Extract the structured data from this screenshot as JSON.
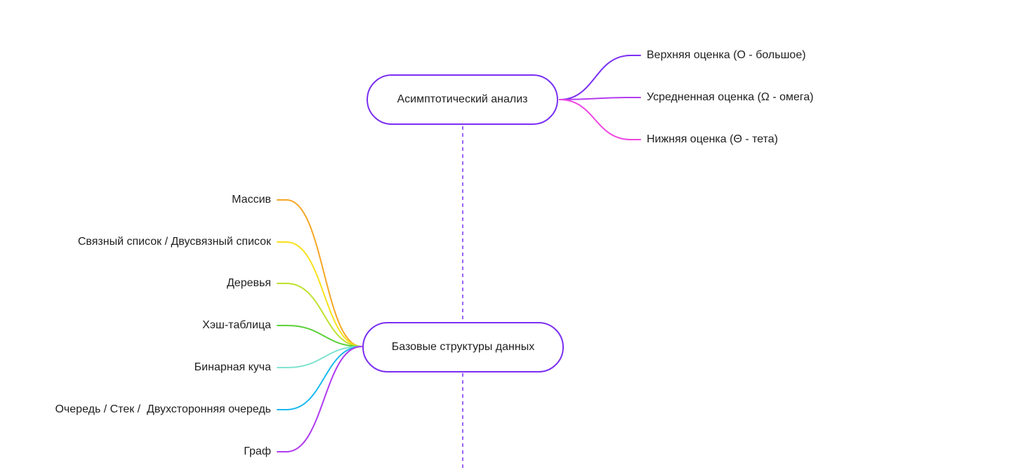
{
  "colors": {
    "node_border": "#7b2ff2",
    "trunk_dash": "#7b2ff2",
    "text": "#1f1f1f"
  },
  "nodes": {
    "asymptotic": {
      "label": "Асимптотический анализ",
      "children": [
        {
          "label": "Верхняя оценка (O - большое)",
          "color": "#7b2ff2"
        },
        {
          "label": "Усредненная оценка (Ω - омега)",
          "color": "#b53cf0"
        },
        {
          "label": "Нижняя оценка (Θ - тета)",
          "color": "#ee45e0"
        }
      ]
    },
    "data_structures": {
      "label": "Базовые структуры данных",
      "children": [
        {
          "label": "Массив",
          "color": "#f5a623"
        },
        {
          "label": "Связный список / Двусвязный список",
          "color": "#f8e11c"
        },
        {
          "label": "Деревья",
          "color": "#bde12e"
        },
        {
          "label": "Хэш-таблица",
          "color": "#5ccf3a"
        },
        {
          "label": "Бинарная куча",
          "color": "#7fe3d0"
        },
        {
          "label": "Очередь / Стек /  Двухсторонняя очередь",
          "color": "#1ab9ef"
        },
        {
          "label": "Граф",
          "color": "#b03cf0"
        }
      ]
    }
  }
}
